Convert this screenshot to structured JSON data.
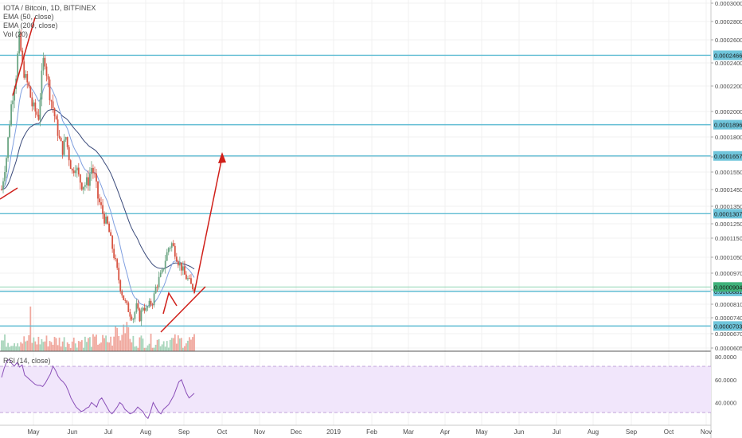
{
  "header": {
    "symbol": "IOTA / Bitcoin, 1D, BITFINEX",
    "indicators": [
      "EMA (50, close)",
      "EMA (200, close)",
      "Vol (20)"
    ],
    "rsi_label": "RSI (14, close)"
  },
  "colors": {
    "up_candle": "#6ba583",
    "down_candle": "#d75442",
    "hline": "#5fbcd3",
    "trend_arrow": "#d0201a",
    "ema50": "#7f9fe0",
    "ema200": "#3a4a7a",
    "rsi_line": "#8a4fb8",
    "rsi_band": "#f1e6fb",
    "last_price_badge": "#3fb27a"
  },
  "chart_data": {
    "type": "candlestick",
    "title": "IOTA / Bitcoin, 1D, BITFINEX",
    "price_ticks": [
      "0.000300000",
      "0.000280000",
      "0.000260000",
      "0.000240000",
      "0.000220000",
      "0.000200000",
      "0.000180000",
      "0.000165000",
      "0.000155000",
      "0.000145000",
      "0.000135000",
      "0.000125000",
      "0.000115000",
      "0.000105000",
      "0.000097000",
      "0.000089000",
      "0.000081000",
      "0.000074000",
      "0.000067000",
      "0.000060500"
    ],
    "horizontal_levels": [
      "0.000246600",
      "0.000189608",
      "0.000165730",
      "0.000130750",
      "0.000088170",
      "0.000070372"
    ],
    "last_price": "0.000090400",
    "x_axis_labels": [
      "May",
      "Jun",
      "Jul",
      "Aug",
      "Sep",
      "Oct",
      "Nov",
      "Dec",
      "2019",
      "Feb",
      "Mar",
      "Apr",
      "May",
      "Jun",
      "Jul",
      "Aug",
      "Sep",
      "Oct",
      "Nov"
    ],
    "rsi": {
      "label": "RSI (14, close)",
      "ticks": [
        "80.0000",
        "60.0000",
        "40.0000"
      ],
      "overbought": 70,
      "oversold": 30,
      "ylim": [
        20,
        85
      ],
      "values": [
        62,
        70,
        76,
        78,
        74,
        72,
        75,
        71,
        73,
        64,
        62,
        60,
        58,
        56,
        55,
        55,
        54,
        57,
        61,
        65,
        72,
        68,
        63,
        60,
        58,
        55,
        50,
        44,
        40,
        36,
        34,
        32,
        33,
        35,
        36,
        40,
        38,
        36,
        42,
        44,
        40,
        36,
        32,
        30,
        33,
        36,
        40,
        38,
        34,
        32,
        30,
        31,
        33,
        36,
        34,
        32,
        28,
        26,
        32,
        40,
        36,
        32,
        30,
        34,
        36,
        38,
        42,
        46,
        52,
        58,
        60,
        54,
        48,
        44,
        46,
        48
      ]
    },
    "candles_ohlc": []
  }
}
